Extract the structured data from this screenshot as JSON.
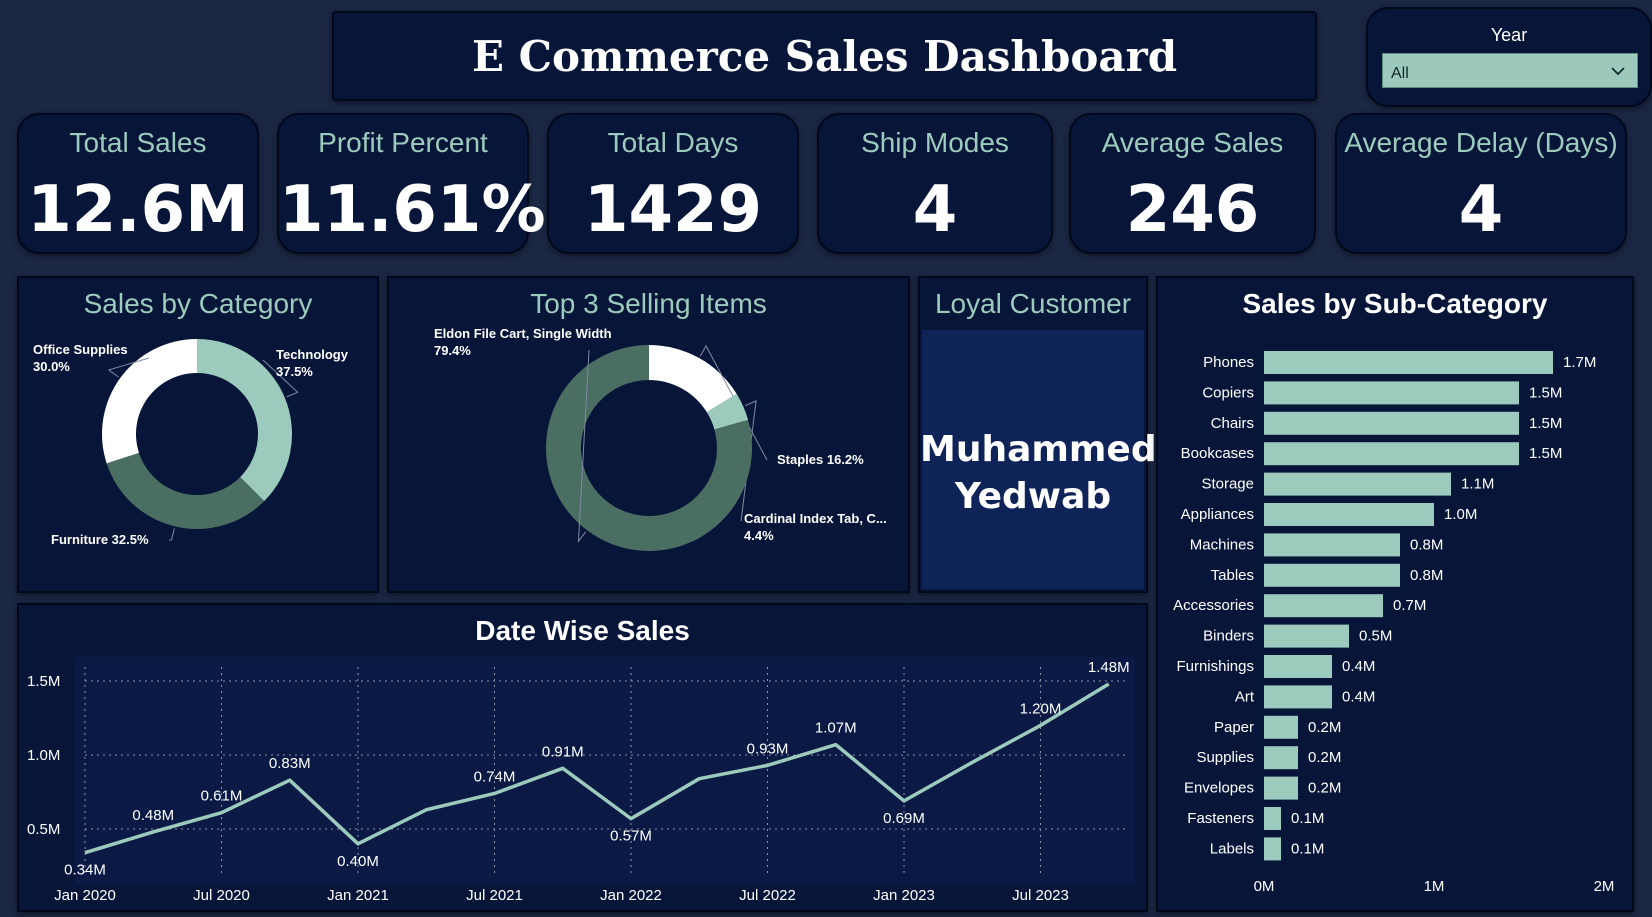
{
  "header": {
    "title": "E Commerce Sales Dashboard"
  },
  "slicer": {
    "label": "Year",
    "value": "All",
    "icon": "chevron-down-icon"
  },
  "kpis": [
    {
      "label": "Total Sales",
      "value": "12.6M"
    },
    {
      "label": "Profit Percent",
      "value": "11.61%"
    },
    {
      "label": "Total Days",
      "value": "1429"
    },
    {
      "label": "Ship Modes",
      "value": "4"
    },
    {
      "label": "Average Sales",
      "value": "246"
    },
    {
      "label": "Average Delay (Days)",
      "value": "4"
    }
  ],
  "loyal": {
    "title": "Loyal Customer",
    "name_line1": "Muhammed",
    "name_line2": "Yedwab"
  },
  "colors": {
    "background": "#1b2743",
    "panel": "#071638",
    "accent": "#9ccbbd",
    "dark_green": "#4a6e62",
    "white": "#ffffff"
  },
  "chart_data": [
    {
      "id": "sales-by-category",
      "type": "pie",
      "title": "Sales by Category",
      "donut": true,
      "slices": [
        {
          "label": "Technology",
          "percent": 37.5,
          "value_label": "37.5%",
          "color": "#9ccbbd"
        },
        {
          "label": "Furniture",
          "percent": 32.5,
          "value_label": "32.5%",
          "color": "#4a6e62"
        },
        {
          "label": "Office Supplies",
          "percent": 30.0,
          "value_label": "30.0%",
          "color": "#ffffff"
        }
      ]
    },
    {
      "id": "top-3-items",
      "type": "pie",
      "title": "Top 3 Selling Items",
      "donut": true,
      "slices": [
        {
          "label": "Staples",
          "percent": 16.2,
          "value_label": "16.2%",
          "color": "#ffffff"
        },
        {
          "label": "Cardinal Index Tab, C...",
          "percent": 4.4,
          "value_label": "4.4%",
          "color": "#9ccbbd"
        },
        {
          "label": "Eldon File Cart, Single Width",
          "percent": 79.4,
          "value_label": "79.4%",
          "color": "#4a6e62"
        }
      ]
    },
    {
      "id": "sales-by-subcategory",
      "type": "bar",
      "orientation": "horizontal",
      "title": "Sales by Sub-Category",
      "categories": [
        "Phones",
        "Copiers",
        "Chairs",
        "Bookcases",
        "Storage",
        "Appliances",
        "Machines",
        "Tables",
        "Accessories",
        "Binders",
        "Furnishings",
        "Art",
        "Paper",
        "Supplies",
        "Envelopes",
        "Fasteners",
        "Labels"
      ],
      "values": [
        1.7,
        1.5,
        1.5,
        1.5,
        1.1,
        1.0,
        0.8,
        0.8,
        0.7,
        0.5,
        0.4,
        0.4,
        0.2,
        0.2,
        0.2,
        0.1,
        0.1
      ],
      "value_labels": [
        "1.7M",
        "1.5M",
        "1.5M",
        "1.5M",
        "1.1M",
        "1.0M",
        "0.8M",
        "0.8M",
        "0.7M",
        "0.5M",
        "0.4M",
        "0.4M",
        "0.2M",
        "0.2M",
        "0.2M",
        "0.1M",
        "0.1M"
      ],
      "xlim": [
        0,
        2
      ],
      "xticks": [
        "0M",
        "1M",
        "2M"
      ],
      "color": "#9ccbbd"
    },
    {
      "id": "date-wise-sales",
      "type": "line",
      "title": "Date Wise Sales",
      "x": [
        "2020-01",
        "2020-04",
        "2020-07",
        "2020-10",
        "2021-01",
        "2021-04",
        "2021-07",
        "2021-10",
        "2022-01",
        "2022-04",
        "2022-07",
        "2022-10",
        "2023-01",
        "2023-04",
        "2023-07",
        "2023-10"
      ],
      "values": [
        0.34,
        0.48,
        0.61,
        0.83,
        0.4,
        0.63,
        0.74,
        0.91,
        0.57,
        0.84,
        0.93,
        1.07,
        0.69,
        0.95,
        1.2,
        1.48
      ],
      "data_labels": [
        "0.34M",
        "0.48M",
        "0.61M",
        "0.83M",
        "0.40M",
        "",
        "0.74M",
        "0.91M",
        "0.57M",
        "",
        "0.93M",
        "1.07M",
        "0.69M",
        "",
        "1.20M",
        "1.48M"
      ],
      "xticks": [
        "Jan 2020",
        "Jul 2020",
        "Jan 2021",
        "Jul 2021",
        "Jan 2022",
        "Jul 2022",
        "Jan 2023",
        "Jul 2023"
      ],
      "yticks": [
        "0.5M",
        "1.0M",
        "1.5M"
      ],
      "ytick_values": [
        0.5,
        1.0,
        1.5
      ],
      "grid": true,
      "color": "#9ccbbd"
    }
  ]
}
